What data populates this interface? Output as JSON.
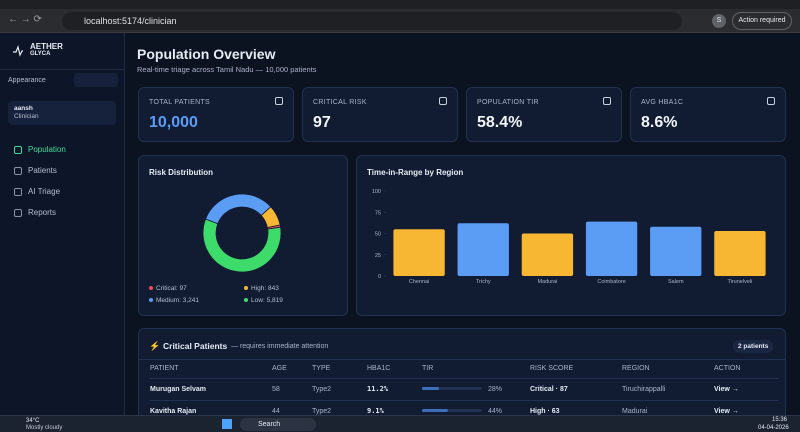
{
  "browser": {
    "url": "localhost:5174/clinician",
    "action": "Action required",
    "avatar": "S"
  },
  "sidebar": {
    "brand": "AETHER",
    "brand_sub": "GLYCA",
    "appearance": "Appearance",
    "user": {
      "name": "aansh",
      "role": "Clinician"
    },
    "nav": [
      "Population",
      "Patients",
      "AI Triage",
      "Reports"
    ]
  },
  "header": {
    "title": "Population Overview",
    "subtitle": "Real-time triage across Tamil Nadu — 10,000 patients"
  },
  "kpis": [
    {
      "label": "TOTAL PATIENTS",
      "value": "10,000"
    },
    {
      "label": "CRITICAL RISK",
      "value": "97"
    },
    {
      "label": "POPULATION TIR",
      "value": "58.4%"
    },
    {
      "label": "AVG HBA1C",
      "value": "8.6%"
    }
  ],
  "chart_data": [
    {
      "type": "pie",
      "title": "Risk Distribution",
      "categories": [
        "Critical",
        "High",
        "Medium",
        "Low"
      ],
      "values": [
        97,
        843,
        3241,
        5819
      ],
      "value_labels": [
        "97",
        "843",
        "3,241",
        "5,819"
      ],
      "colors": [
        "#f04a5e",
        "#f7b733",
        "#5b9cf5",
        "#3ddc6a"
      ]
    },
    {
      "type": "bar",
      "title": "Time-in-Range by Region",
      "categories": [
        "Chennai",
        "Trichy",
        "Madurai",
        "Coimbatore",
        "Salem",
        "Tirunelveli"
      ],
      "values": [
        55,
        62,
        50,
        64,
        58,
        53
      ],
      "colors": [
        "#f7b733",
        "#5b9cf5",
        "#f7b733",
        "#5b9cf5",
        "#5b9cf5",
        "#f7b733"
      ],
      "ylim": [
        0,
        100
      ],
      "yticks": [
        0,
        25,
        50,
        75,
        100
      ],
      "grid": false
    }
  ],
  "critical": {
    "title": "Critical Patients",
    "subtitle": "— requires immediate attention",
    "count": "2 patients",
    "columns": [
      "PATIENT",
      "AGE",
      "TYPE",
      "HBA1C",
      "TIR",
      "RISK SCORE",
      "REGION",
      "ACTION"
    ],
    "rows": [
      [
        "Murugan Selvam",
        "58",
        "Type2",
        "11.2%",
        "28%",
        "Critical · 87",
        "Tiruchirappalli",
        "View →"
      ],
      [
        "Kavitha Rajan",
        "44",
        "Type2",
        "9.1%",
        "44%",
        "High · 63",
        "Madurai",
        "View →"
      ]
    ]
  },
  "taskbar": {
    "temp": "34°C",
    "condition": "Mostly cloudy",
    "search": "Search",
    "time": "15:36",
    "date": "04-04-2026"
  }
}
